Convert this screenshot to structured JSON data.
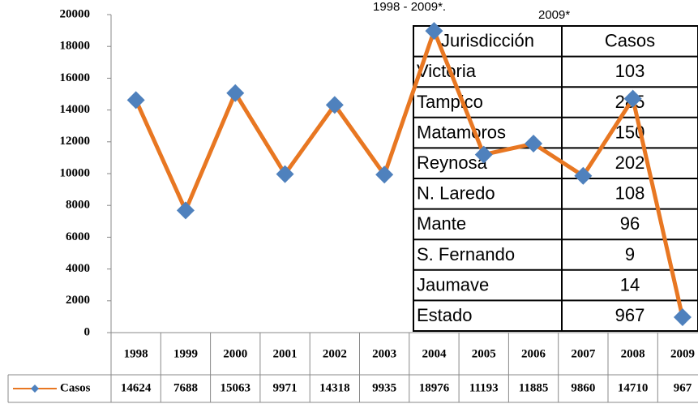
{
  "chart_data": {
    "type": "line",
    "annotations": [
      "1998 - 2009*.",
      "2009*"
    ],
    "categories": [
      "1998",
      "1999",
      "2000",
      "2001",
      "2002",
      "2003",
      "2004",
      "2005",
      "2006",
      "2007",
      "2008",
      "2009"
    ],
    "series": [
      {
        "name": "Casos",
        "color": "#e87722",
        "marker_color": "#4f81bd",
        "values": [
          14624,
          7688,
          15063,
          9971,
          14318,
          9935,
          18976,
          11193,
          11885,
          9860,
          14710,
          967
        ]
      }
    ],
    "ylim": [
      0,
      20000
    ],
    "yticks": [
      0,
      2000,
      4000,
      6000,
      8000,
      10000,
      12000,
      14000,
      16000,
      18000,
      20000
    ],
    "grid": false,
    "table": {
      "columns": [
        "Jurisdicción",
        "Casos"
      ],
      "rows": [
        [
          "Victoria",
          103
        ],
        [
          "Tampico",
          285
        ],
        [
          "Matamoros",
          150
        ],
        [
          "Reynosa",
          202
        ],
        [
          "N. Laredo",
          108
        ],
        [
          "Mante",
          96
        ],
        [
          "S. Fernando",
          9
        ],
        [
          "Jaumave",
          14
        ],
        [
          "Estado",
          967
        ]
      ]
    }
  }
}
